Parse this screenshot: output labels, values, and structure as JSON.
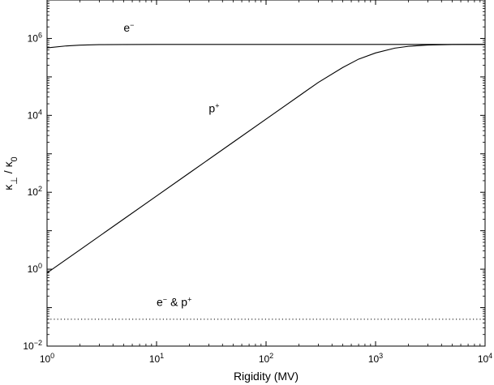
{
  "chart_data": {
    "type": "line",
    "xscale": "log",
    "yscale": "log",
    "xlim": [
      1,
      10000
    ],
    "ylim": [
      0.01,
      10000000
    ],
    "xlabel": "Rigidity (MV)",
    "ylabel": "κ⊥ / κ0",
    "xticks": [
      {
        "value": 1,
        "base": "10",
        "exp": "0"
      },
      {
        "value": 10,
        "base": "10",
        "exp": "1"
      },
      {
        "value": 100,
        "base": "10",
        "exp": "2"
      },
      {
        "value": 1000,
        "base": "10",
        "exp": "3"
      },
      {
        "value": 10000,
        "base": "10",
        "exp": "4"
      }
    ],
    "yticks": [
      {
        "value": 0.01,
        "base": "10",
        "exp": "−2"
      },
      {
        "value": 1,
        "base": "10",
        "exp": "0"
      },
      {
        "value": 100,
        "base": "10",
        "exp": "2"
      },
      {
        "value": 10000,
        "base": "10",
        "exp": "4"
      },
      {
        "value": 1000000,
        "base": "10",
        "exp": "6"
      }
    ],
    "grid": false,
    "legend": "none",
    "series": [
      {
        "label_base": "e",
        "label_sup": "−",
        "label_at": [
          5,
          1500000
        ],
        "style": "solid",
        "color": "#000000",
        "x": [
          1,
          1.5,
          2,
          3,
          5,
          10,
          20,
          50,
          100,
          1000,
          10000
        ],
        "y": [
          570000,
          640000,
          670000,
          690000,
          695000,
          700000,
          700000,
          700000,
          700000,
          700000,
          700000
        ]
      },
      {
        "label_base": "p",
        "label_sup": "+",
        "label_at": [
          30,
          12000
        ],
        "style": "solid",
        "color": "#000000",
        "x": [
          1,
          2,
          5,
          10,
          20,
          50,
          100,
          200,
          300,
          500,
          700,
          1000,
          1500,
          2000,
          3000,
          5000,
          7000,
          10000
        ],
        "y": [
          0.8,
          3.2,
          20,
          80,
          320,
          2000,
          8000,
          32000,
          72000,
          175000,
          290000,
          420000,
          560000,
          625000,
          675000,
          695000,
          700000,
          700000
        ]
      },
      {
        "label_base": "e",
        "label_sup": "−",
        "label_tail": "& p",
        "label_tail_sup": "+",
        "label_at": [
          10,
          0.11
        ],
        "style": "dotted",
        "color": "#000000",
        "x": [
          1,
          10000
        ],
        "y": [
          0.05,
          0.05
        ]
      }
    ]
  }
}
